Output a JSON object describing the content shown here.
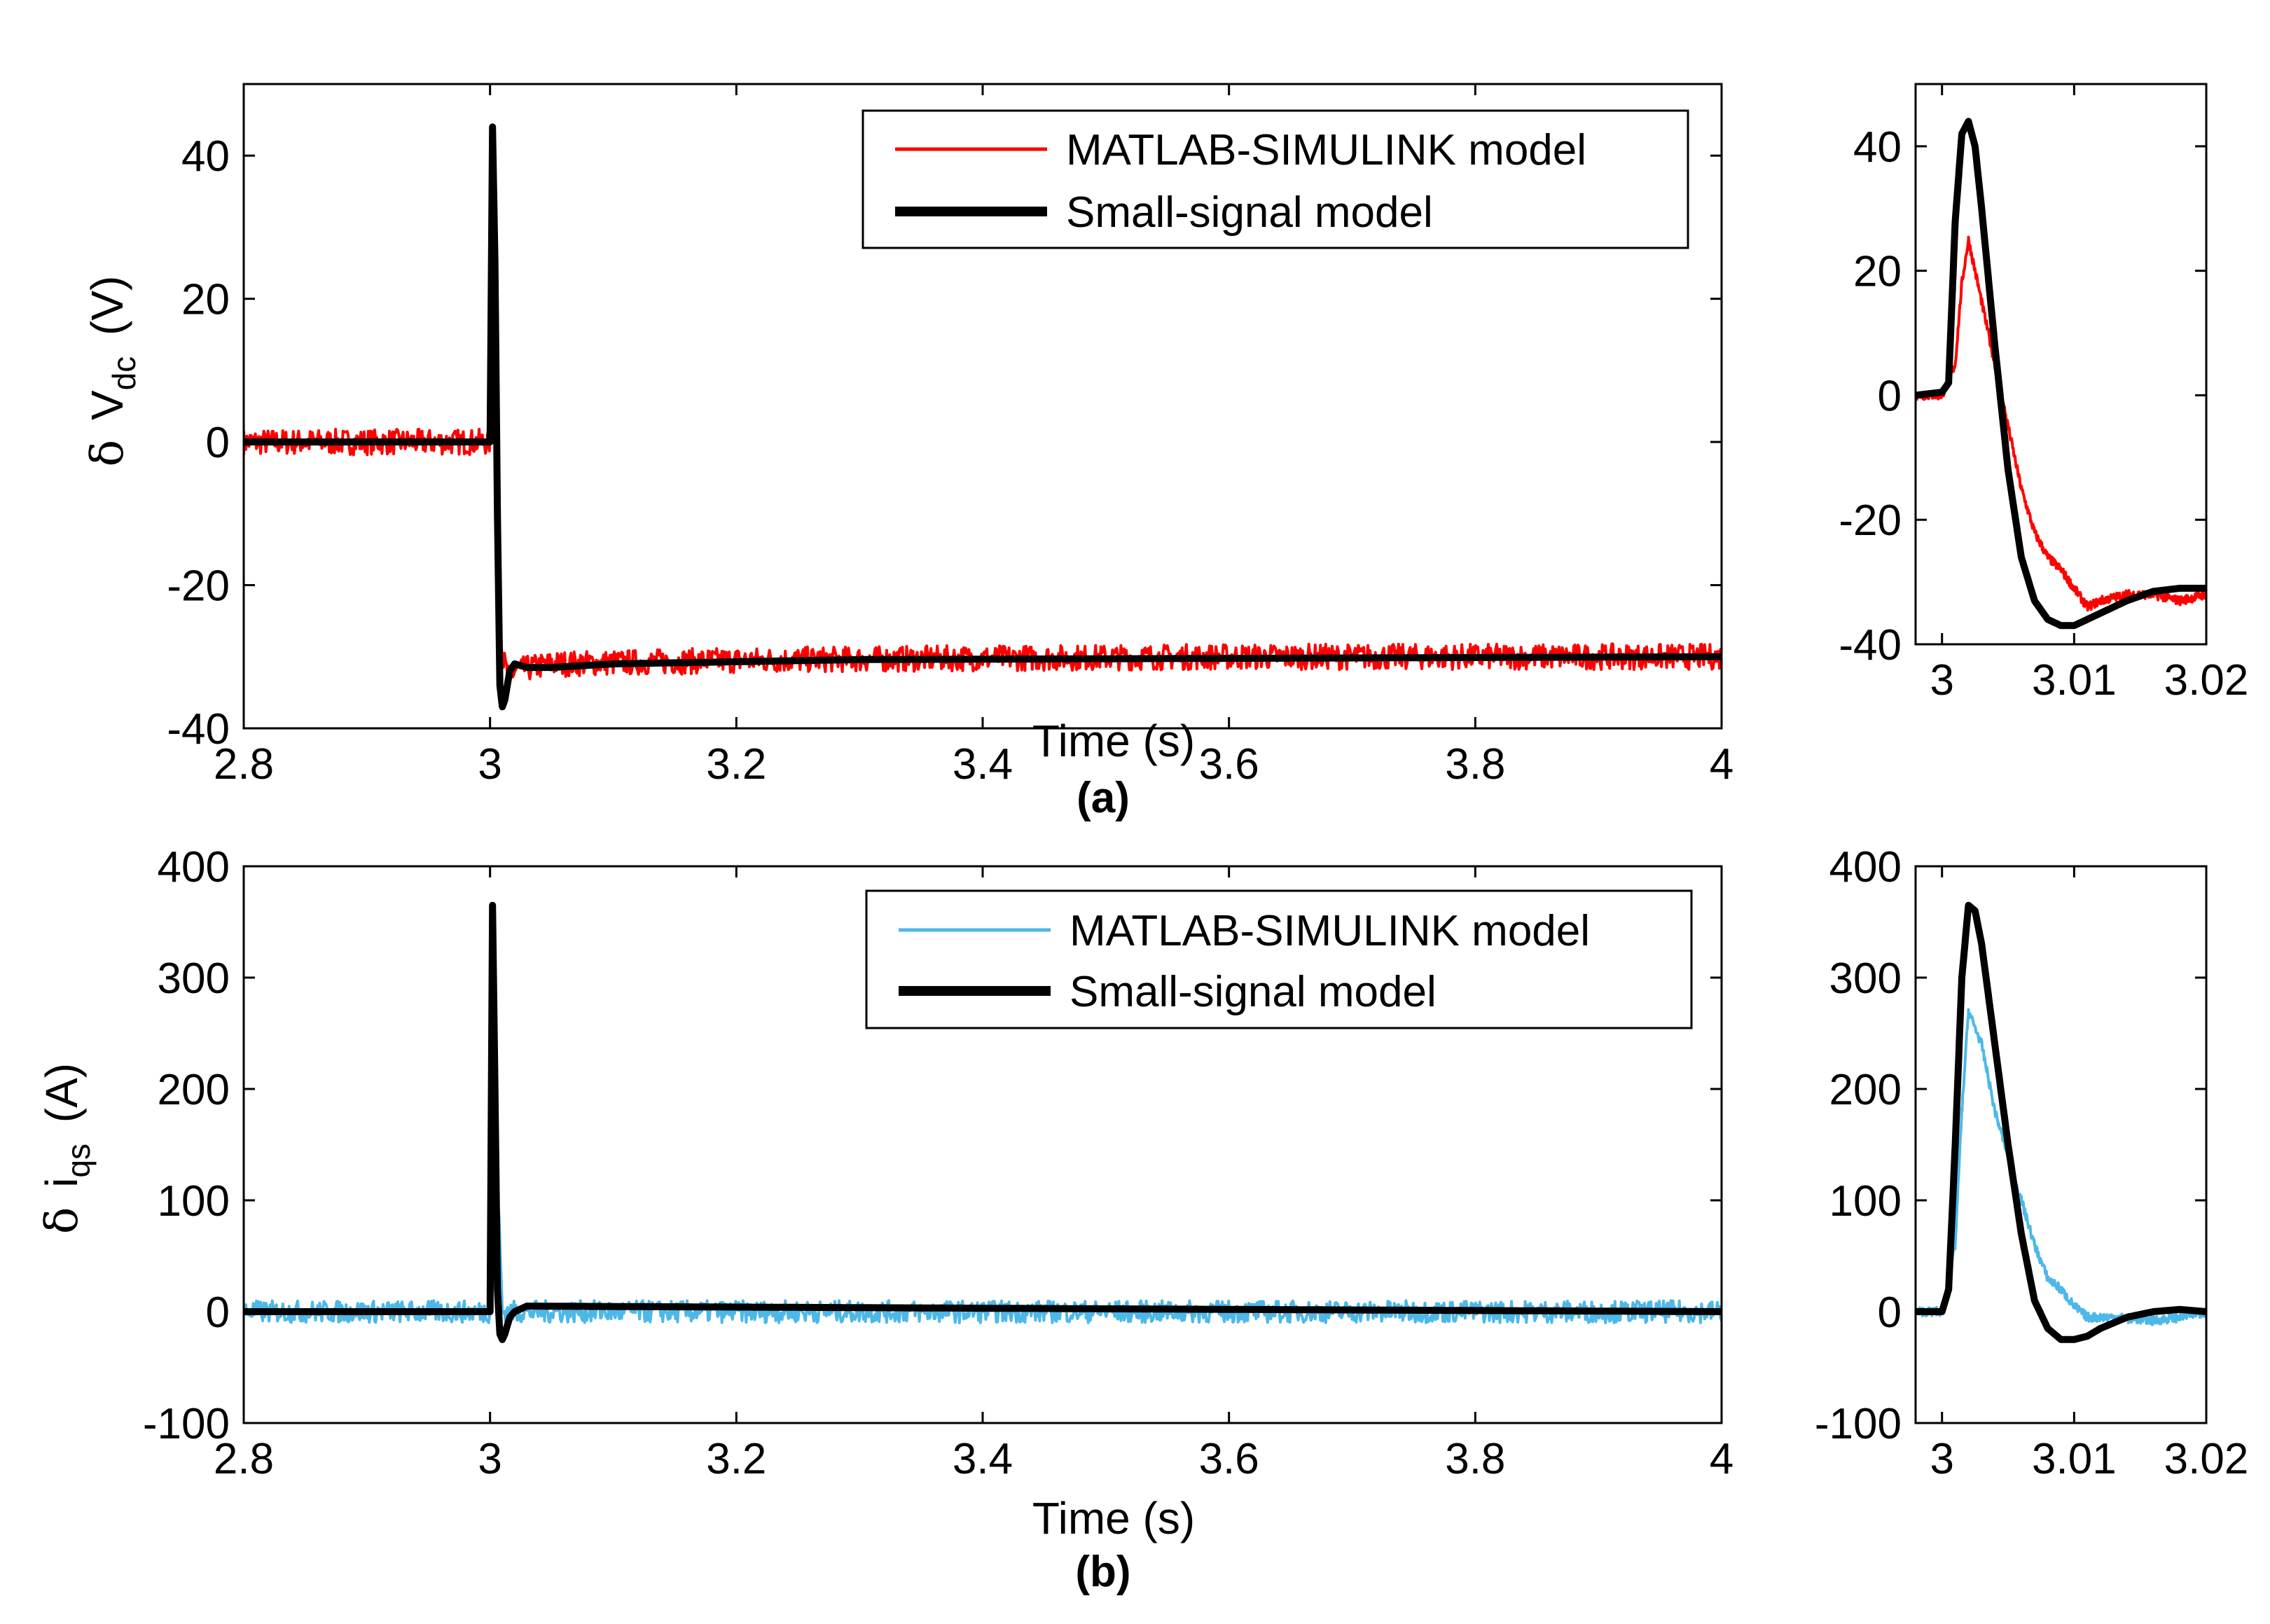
{
  "chart_data": [
    {
      "id": "a-main",
      "type": "line",
      "xlabel": "Time (s)",
      "ylabel": {
        "symbol": "δ",
        "main": "V",
        "sub": "dc",
        "unit": "(V)"
      },
      "xlim": [
        2.8,
        4.0
      ],
      "ylim": [
        -40,
        50
      ],
      "xticks": [
        "2.8",
        "3",
        "3.2",
        "3.4",
        "3.6",
        "3.8",
        "4"
      ],
      "yticks": [
        "-40",
        "-20",
        "0",
        "20",
        "40"
      ],
      "legend": {
        "position": "top-right",
        "entries": [
          "MATLAB-SIMULINK model",
          "Small-signal model"
        ]
      },
      "caption": "(a)",
      "series": [
        {
          "name": "MATLAB-SIMULINK model",
          "color": "#ff0000",
          "shape": "noisy",
          "x": [
            2.8,
            2.9995,
            3.0,
            3.002,
            3.004,
            3.006,
            3.008,
            3.01,
            3.015,
            3.02,
            3.05,
            3.2,
            3.4,
            3.6,
            4.0
          ],
          "y": [
            0,
            0,
            0,
            25,
            18,
            -5,
            -22,
            -30,
            -33,
            -32,
            -31,
            -30.5,
            -30.2,
            -30,
            -30
          ]
        },
        {
          "name": "Small-signal model",
          "color": "#000000",
          "shape": "smooth",
          "x": [
            2.8,
            2.9995,
            3.0,
            3.002,
            3.004,
            3.006,
            3.008,
            3.01,
            3.012,
            3.016,
            3.02,
            3.03,
            3.05,
            3.1,
            3.3,
            4.0
          ],
          "y": [
            0,
            0,
            0,
            44,
            25,
            -10,
            -34,
            -37,
            -36,
            -32,
            -31,
            -31.5,
            -31.5,
            -31,
            -30.4,
            -30
          ]
        }
      ]
    },
    {
      "id": "a-zoom",
      "type": "line",
      "xlim": [
        2.998,
        3.02
      ],
      "ylim": [
        -40,
        50
      ],
      "xticks": [
        "3",
        "3.01",
        "3.02"
      ],
      "yticks": [
        "-40",
        "-20",
        "0",
        "20",
        "40"
      ],
      "series": [
        {
          "name": "MATLAB-SIMULINK model",
          "color": "#ff0000",
          "shape": "noisy",
          "x": [
            2.998,
            3.0,
            3.001,
            3.0015,
            3.002,
            3.003,
            3.004,
            3.005,
            3.006,
            3.007,
            3.008,
            3.009,
            3.01,
            3.011,
            3.012,
            3.014,
            3.016,
            3.018,
            3.02
          ],
          "y": [
            0,
            0,
            5,
            18,
            25,
            15,
            5,
            -5,
            -15,
            -22,
            -26,
            -28,
            -31,
            -34,
            -33,
            -32,
            -32,
            -33,
            -32
          ]
        },
        {
          "name": "Small-signal model",
          "color": "#000000",
          "shape": "smooth",
          "x": [
            2.998,
            3.0,
            3.0005,
            3.001,
            3.0015,
            3.002,
            3.0025,
            3.003,
            3.004,
            3.005,
            3.006,
            3.007,
            3.008,
            3.009,
            3.01,
            3.011,
            3.012,
            3.014,
            3.016,
            3.018,
            3.02
          ],
          "y": [
            0,
            0.5,
            2,
            28,
            42,
            44,
            40,
            30,
            8,
            -12,
            -26,
            -33,
            -36,
            -37,
            -37,
            -36,
            -35,
            -33,
            -31.5,
            -31,
            -31
          ]
        }
      ]
    },
    {
      "id": "b-main",
      "type": "line",
      "xlabel": "Time (s)",
      "ylabel": {
        "symbol": "δ",
        "main": "i",
        "sub": "qs",
        "unit": "(A)"
      },
      "xlim": [
        2.8,
        4.0
      ],
      "ylim": [
        -100,
        400
      ],
      "xticks": [
        "2.8",
        "3",
        "3.2",
        "3.4",
        "3.6",
        "3.8",
        "4"
      ],
      "yticks": [
        "-100",
        "0",
        "100",
        "200",
        "300",
        "400"
      ],
      "legend": {
        "position": "top-right",
        "entries": [
          "MATLAB-SIMULINK model",
          "Small-signal model"
        ]
      },
      "caption": "(b)",
      "series": [
        {
          "name": "MATLAB-SIMULINK model",
          "color": "#4db8e8",
          "shape": "noisy",
          "x": [
            2.8,
            2.9995,
            3.0,
            3.002,
            3.005,
            3.01,
            3.02,
            4.0
          ],
          "y": [
            0,
            0,
            0,
            270,
            150,
            0,
            0,
            0
          ]
        },
        {
          "name": "Small-signal model",
          "color": "#000000",
          "shape": "smooth",
          "x": [
            2.8,
            2.9995,
            3.0,
            3.002,
            3.004,
            3.006,
            3.008,
            3.01,
            3.012,
            3.016,
            3.02,
            3.03,
            4.0
          ],
          "y": [
            0,
            0,
            0,
            365,
            200,
            20,
            -20,
            -25,
            -20,
            -5,
            0,
            5,
            0
          ]
        }
      ]
    },
    {
      "id": "b-zoom",
      "type": "line",
      "xlim": [
        2.998,
        3.02
      ],
      "ylim": [
        -100,
        400
      ],
      "xticks": [
        "3",
        "3.01",
        "3.02"
      ],
      "yticks": [
        "-100",
        "0",
        "100",
        "200",
        "300",
        "400"
      ],
      "series": [
        {
          "name": "MATLAB-SIMULINK model",
          "color": "#4db8e8",
          "shape": "noisy",
          "x": [
            2.998,
            3.0,
            3.001,
            3.0015,
            3.002,
            3.003,
            3.004,
            3.005,
            3.006,
            3.007,
            3.008,
            3.009,
            3.01,
            3.011,
            3.013,
            3.016,
            3.018,
            3.02
          ],
          "y": [
            0,
            0,
            60,
            180,
            270,
            240,
            180,
            140,
            100,
            60,
            30,
            20,
            5,
            -5,
            -5,
            -8,
            -5,
            0
          ]
        },
        {
          "name": "Small-signal model",
          "color": "#000000",
          "shape": "smooth",
          "x": [
            2.998,
            3.0,
            3.0005,
            3.001,
            3.0015,
            3.002,
            3.0025,
            3.003,
            3.004,
            3.005,
            3.006,
            3.007,
            3.008,
            3.009,
            3.01,
            3.011,
            3.012,
            3.014,
            3.016,
            3.018,
            3.02
          ],
          "y": [
            0,
            0,
            20,
            150,
            300,
            365,
            360,
            330,
            240,
            150,
            70,
            10,
            -15,
            -25,
            -25,
            -22,
            -15,
            -5,
            0,
            2,
            0
          ]
        }
      ]
    }
  ]
}
